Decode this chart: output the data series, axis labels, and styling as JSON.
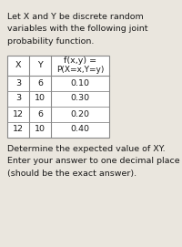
{
  "title_lines": [
    "Let X and Y be discrete random",
    "variables with the following joint",
    "probability function."
  ],
  "table_header_col3_line1": "f(x,y) =",
  "table_header_col3_line2": "P(X=x,Y=y)",
  "table_header_x": "X",
  "table_header_y": "Y",
  "table_rows": [
    [
      "3",
      "6",
      "0.10"
    ],
    [
      "3",
      "10",
      "0.30"
    ],
    [
      "12",
      "6",
      "0.20"
    ],
    [
      "12",
      "10",
      "0.40"
    ]
  ],
  "footer_lines": [
    "Determine the expected value of XY.",
    "Enter your answer to one decimal place",
    "(should be the exact answer)."
  ],
  "bg_color": "#eae6de",
  "text_color": "#1a1a1a",
  "font_size": 6.8,
  "table_font_size": 6.8,
  "fig_width": 2.0,
  "fig_height": 2.71
}
